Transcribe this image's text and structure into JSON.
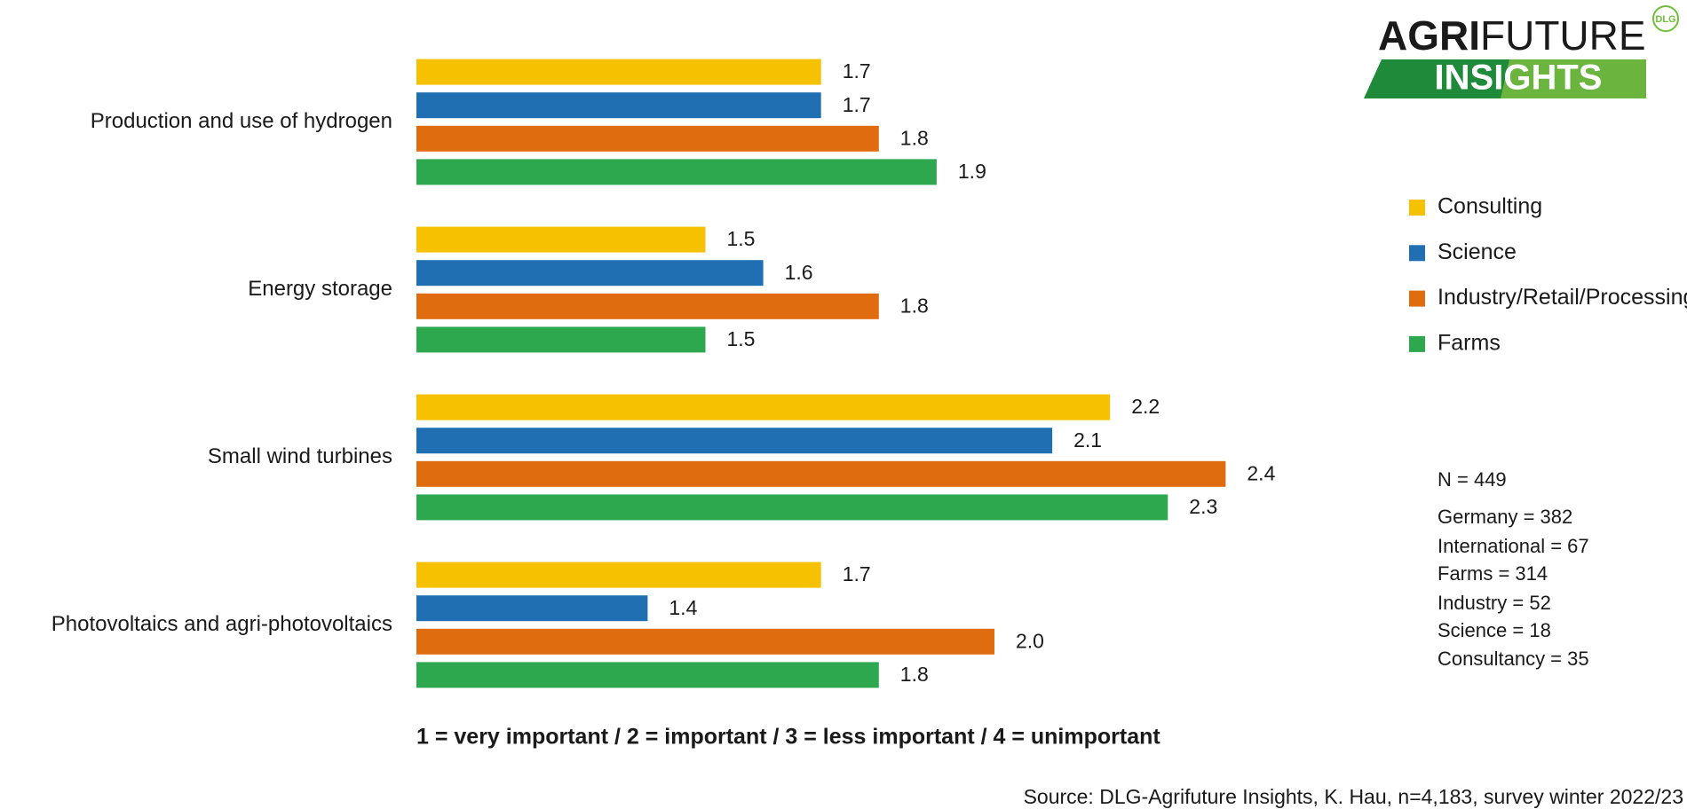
{
  "chart_data": {
    "type": "bar",
    "orientation": "horizontal",
    "categories": [
      "Production and use of hydrogen",
      "Energy storage",
      "Small wind turbines",
      "Photovoltaics and agri-photovoltaics"
    ],
    "series": [
      {
        "name": "Consulting",
        "color": "#f5c100",
        "values": [
          1.7,
          1.5,
          2.2,
          1.7
        ],
        "value_labels": [
          "1.7",
          "1.5",
          "2.2",
          "1.7"
        ]
      },
      {
        "name": "Science",
        "color": "#1f6fb2",
        "values": [
          1.7,
          1.6,
          2.1,
          1.4
        ],
        "value_labels": [
          "1.7",
          "1.6",
          "2.1",
          "1.4"
        ]
      },
      {
        "name": "Industry/Retail/Processing",
        "color": "#e06c10",
        "values": [
          1.8,
          1.8,
          2.4,
          2.0
        ],
        "value_labels": [
          "1.8",
          "1.8",
          "2.4",
          "2.0"
        ]
      },
      {
        "name": "Farms",
        "color": "#2ea84f",
        "values": [
          1.9,
          1.5,
          2.3,
          1.8
        ],
        "value_labels": [
          "1.9",
          "1.5",
          "2.3",
          "1.8"
        ]
      }
    ],
    "xlim": [
      1,
      2.5
    ],
    "legend": "right",
    "scale_note": "1 = very important / 2 = important / 3 = less important / 4 = unimportant",
    "notes": [
      "N =  449",
      "Germany = 382",
      "International = 67",
      "Farms = 314",
      "Industry = 52",
      "Science = 18",
      "Consultancy = 35"
    ],
    "source": "Source: DLG-Agrifuture Insights, K. Hau, n=4,183, survey winter 2022/23"
  },
  "logo": {
    "agri": "AGRI",
    "future": "FUTURE",
    "insights": "INSIGHTS",
    "badge": "DLG"
  }
}
